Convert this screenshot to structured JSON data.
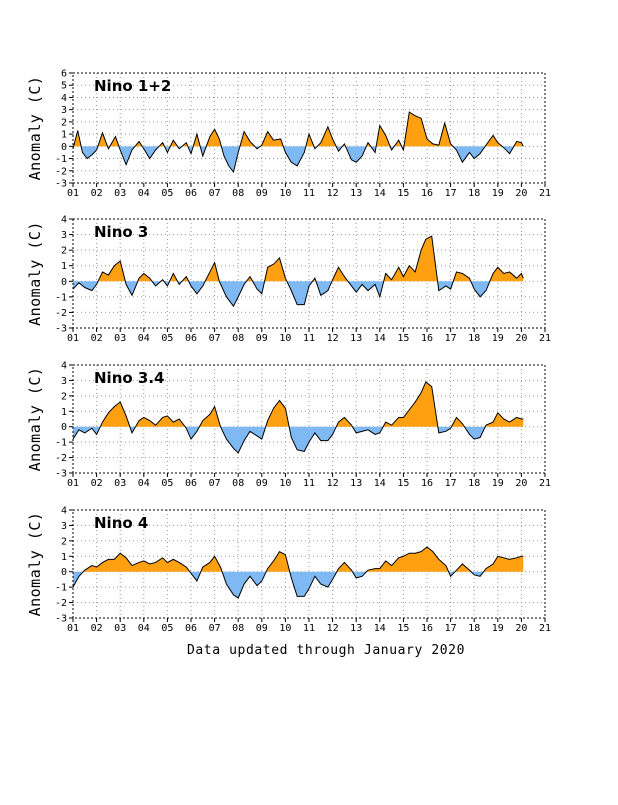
{
  "footer": "Data updated through January 2020",
  "colors": {
    "positive": "#FFA010",
    "negative": "#7FB9F4",
    "line": "#000000",
    "grid": "#999999"
  },
  "chart_data": [
    {
      "type": "area",
      "title": "Nino 1+2",
      "ylabel": "Anomaly (C)",
      "xlabel": "",
      "ylim": [
        -3,
        6
      ],
      "yticks": [
        -3,
        -2,
        -1,
        0,
        1,
        2,
        3,
        4,
        5,
        6
      ],
      "xlim": [
        2001,
        2021
      ],
      "xtick_labels": [
        "01",
        "02",
        "03",
        "04",
        "05",
        "06",
        "07",
        "08",
        "09",
        "10",
        "11",
        "12",
        "13",
        "14",
        "15",
        "16",
        "17",
        "18",
        "19",
        "20",
        "21"
      ],
      "grid": true,
      "series": [
        {
          "x": [
            2001.0,
            2001.2,
            2001.4,
            2001.6,
            2001.8,
            2002.0,
            2002.25,
            2002.5,
            2002.8,
            2003.0,
            2003.25,
            2003.5,
            2003.8,
            2004.0,
            2004.25,
            2004.5,
            2004.8,
            2005.0,
            2005.25,
            2005.5,
            2005.8,
            2006.0,
            2006.25,
            2006.5,
            2006.8,
            2007.0,
            2007.2,
            2007.4,
            2007.6,
            2007.8,
            2008.0,
            2008.25,
            2008.5,
            2008.8,
            2009.0,
            2009.25,
            2009.5,
            2009.8,
            2010.0,
            2010.25,
            2010.5,
            2010.8,
            2011.0,
            2011.25,
            2011.5,
            2011.8,
            2012.0,
            2012.25,
            2012.5,
            2012.8,
            2013.0,
            2013.25,
            2013.5,
            2013.8,
            2014.0,
            2014.25,
            2014.5,
            2014.8,
            2015.0,
            2015.25,
            2015.5,
            2015.75,
            2016.0,
            2016.25,
            2016.5,
            2016.75,
            2017.0,
            2017.25,
            2017.5,
            2017.8,
            2018.0,
            2018.25,
            2018.5,
            2018.8,
            2019.0,
            2019.25,
            2019.5,
            2019.8,
            2020.0,
            2020.08
          ],
          "y": [
            -0.2,
            1.3,
            -0.5,
            -1.0,
            -0.7,
            -0.3,
            1.1,
            -0.2,
            0.8,
            -0.3,
            -1.5,
            -0.3,
            0.4,
            -0.2,
            -1.0,
            -0.3,
            0.3,
            -0.5,
            0.5,
            -0.2,
            0.3,
            -0.6,
            1.0,
            -0.8,
            0.8,
            1.4,
            0.6,
            -0.8,
            -1.6,
            -2.1,
            -0.5,
            1.2,
            0.4,
            -0.2,
            0.1,
            1.2,
            0.5,
            0.6,
            -0.5,
            -1.3,
            -1.6,
            -0.5,
            1.0,
            -0.2,
            0.3,
            1.6,
            0.6,
            -0.4,
            0.2,
            -1.1,
            -1.3,
            -0.8,
            0.3,
            -0.5,
            1.7,
            0.9,
            -0.3,
            0.5,
            -0.3,
            2.8,
            2.5,
            2.3,
            0.6,
            0.2,
            0.1,
            1.9,
            0.2,
            -0.3,
            -1.3,
            -0.5,
            -1.0,
            -0.6,
            0.1,
            0.9,
            0.3,
            -0.1,
            -0.6,
            0.4,
            0.3,
            0.0
          ]
        }
      ]
    },
    {
      "type": "area",
      "title": "Nino 3",
      "ylabel": "Anomaly (C)",
      "xlabel": "",
      "ylim": [
        -3,
        4
      ],
      "yticks": [
        -3,
        -2,
        -1,
        0,
        1,
        2,
        3,
        4
      ],
      "xlim": [
        2001,
        2021
      ],
      "xtick_labels": [
        "01",
        "02",
        "03",
        "04",
        "05",
        "06",
        "07",
        "08",
        "09",
        "10",
        "11",
        "12",
        "13",
        "14",
        "15",
        "16",
        "17",
        "18",
        "19",
        "20",
        "21"
      ],
      "grid": true,
      "series": [
        {
          "x": [
            2001.0,
            2001.25,
            2001.5,
            2001.8,
            2002.0,
            2002.25,
            2002.5,
            2002.75,
            2003.0,
            2003.25,
            2003.5,
            2003.8,
            2004.0,
            2004.25,
            2004.5,
            2004.8,
            2005.0,
            2005.25,
            2005.5,
            2005.8,
            2006.0,
            2006.25,
            2006.5,
            2006.8,
            2007.0,
            2007.2,
            2007.5,
            2007.8,
            2008.0,
            2008.25,
            2008.5,
            2008.8,
            2009.0,
            2009.25,
            2009.5,
            2009.75,
            2010.0,
            2010.25,
            2010.5,
            2010.8,
            2011.0,
            2011.25,
            2011.5,
            2011.8,
            2012.0,
            2012.25,
            2012.5,
            2012.8,
            2013.0,
            2013.25,
            2013.5,
            2013.8,
            2014.0,
            2014.25,
            2014.5,
            2014.8,
            2015.0,
            2015.25,
            2015.5,
            2015.75,
            2015.95,
            2016.2,
            2016.5,
            2016.8,
            2017.0,
            2017.25,
            2017.5,
            2017.8,
            2018.0,
            2018.25,
            2018.5,
            2018.8,
            2019.0,
            2019.25,
            2019.5,
            2019.8,
            2020.0,
            2020.08
          ],
          "y": [
            -0.5,
            -0.1,
            -0.4,
            -0.6,
            -0.2,
            0.6,
            0.4,
            1.0,
            1.3,
            -0.2,
            -0.9,
            0.2,
            0.5,
            0.2,
            -0.3,
            0.1,
            -0.3,
            0.5,
            -0.2,
            0.3,
            -0.3,
            -0.8,
            -0.3,
            0.6,
            1.2,
            0.0,
            -1.0,
            -1.6,
            -1.0,
            -0.2,
            0.3,
            -0.5,
            -0.8,
            0.9,
            1.1,
            1.5,
            0.2,
            -0.6,
            -1.5,
            -1.5,
            -0.3,
            0.2,
            -0.9,
            -0.6,
            0.1,
            0.9,
            0.3,
            -0.3,
            -0.7,
            -0.2,
            -0.6,
            -0.2,
            -1.0,
            0.5,
            0.1,
            0.9,
            0.3,
            1.0,
            0.6,
            2.0,
            2.7,
            2.9,
            -0.6,
            -0.3,
            -0.5,
            0.6,
            0.5,
            0.2,
            -0.5,
            -1.0,
            -0.6,
            0.5,
            0.9,
            0.5,
            0.6,
            0.2,
            0.5,
            0.2
          ]
        }
      ]
    },
    {
      "type": "area",
      "title": "Nino 3.4",
      "ylabel": "Anomaly (C)",
      "xlabel": "",
      "ylim": [
        -3,
        4
      ],
      "yticks": [
        -3,
        -2,
        -1,
        0,
        1,
        2,
        3,
        4
      ],
      "xlim": [
        2001,
        2021
      ],
      "xtick_labels": [
        "01",
        "02",
        "03",
        "04",
        "05",
        "06",
        "07",
        "08",
        "09",
        "10",
        "11",
        "12",
        "13",
        "14",
        "15",
        "16",
        "17",
        "18",
        "19",
        "20",
        "21"
      ],
      "grid": true,
      "series": [
        {
          "x": [
            2001.0,
            2001.25,
            2001.5,
            2001.8,
            2002.0,
            2002.25,
            2002.5,
            2002.75,
            2003.0,
            2003.25,
            2003.5,
            2003.8,
            2004.0,
            2004.25,
            2004.5,
            2004.8,
            2005.0,
            2005.25,
            2005.5,
            2005.8,
            2006.0,
            2006.25,
            2006.5,
            2006.8,
            2007.0,
            2007.25,
            2007.5,
            2007.8,
            2008.0,
            2008.25,
            2008.5,
            2008.8,
            2009.0,
            2009.25,
            2009.5,
            2009.75,
            2010.0,
            2010.25,
            2010.5,
            2010.8,
            2011.0,
            2011.25,
            2011.5,
            2011.8,
            2012.0,
            2012.25,
            2012.5,
            2012.8,
            2013.0,
            2013.25,
            2013.5,
            2013.8,
            2014.0,
            2014.25,
            2014.5,
            2014.8,
            2015.0,
            2015.25,
            2015.5,
            2015.75,
            2015.95,
            2016.2,
            2016.5,
            2016.8,
            2017.0,
            2017.25,
            2017.5,
            2017.8,
            2018.0,
            2018.25,
            2018.5,
            2018.8,
            2019.0,
            2019.25,
            2019.5,
            2019.8,
            2020.0,
            2020.08
          ],
          "y": [
            -0.8,
            -0.2,
            -0.4,
            -0.1,
            -0.5,
            0.3,
            0.9,
            1.3,
            1.6,
            0.7,
            -0.4,
            0.4,
            0.6,
            0.4,
            0.1,
            0.6,
            0.7,
            0.3,
            0.5,
            -0.1,
            -0.8,
            -0.3,
            0.4,
            0.8,
            1.3,
            0.0,
            -0.8,
            -1.4,
            -1.7,
            -0.9,
            -0.3,
            -0.6,
            -0.8,
            0.4,
            1.2,
            1.7,
            1.2,
            -0.7,
            -1.5,
            -1.6,
            -1.0,
            -0.4,
            -0.9,
            -0.9,
            -0.5,
            0.3,
            0.6,
            0.1,
            -0.4,
            -0.3,
            -0.2,
            -0.5,
            -0.4,
            0.3,
            0.1,
            0.6,
            0.6,
            1.1,
            1.6,
            2.2,
            2.9,
            2.6,
            -0.4,
            -0.3,
            -0.1,
            0.6,
            0.2,
            -0.5,
            -0.8,
            -0.7,
            0.1,
            0.3,
            0.9,
            0.5,
            0.3,
            0.6,
            0.5,
            0.5
          ]
        }
      ]
    },
    {
      "type": "area",
      "title": "Nino 4",
      "ylabel": "Anomaly (C)",
      "xlabel": "",
      "ylim": [
        -3,
        4
      ],
      "yticks": [
        -3,
        -2,
        -1,
        0,
        1,
        2,
        3,
        4
      ],
      "xlim": [
        2001,
        2021
      ],
      "xtick_labels": [
        "01",
        "02",
        "03",
        "04",
        "05",
        "06",
        "07",
        "08",
        "09",
        "10",
        "11",
        "12",
        "13",
        "14",
        "15",
        "16",
        "17",
        "18",
        "19",
        "20",
        "21"
      ],
      "grid": true,
      "series": [
        {
          "x": [
            2001.0,
            2001.25,
            2001.5,
            2001.8,
            2002.0,
            2002.25,
            2002.5,
            2002.75,
            2003.0,
            2003.25,
            2003.5,
            2003.8,
            2004.0,
            2004.25,
            2004.5,
            2004.8,
            2005.0,
            2005.25,
            2005.5,
            2005.8,
            2006.0,
            2006.25,
            2006.5,
            2006.8,
            2007.0,
            2007.25,
            2007.5,
            2007.8,
            2008.0,
            2008.25,
            2008.5,
            2008.8,
            2009.0,
            2009.25,
            2009.5,
            2009.75,
            2010.0,
            2010.25,
            2010.5,
            2010.8,
            2011.0,
            2011.25,
            2011.5,
            2011.8,
            2012.0,
            2012.25,
            2012.5,
            2012.8,
            2013.0,
            2013.25,
            2013.5,
            2013.8,
            2014.0,
            2014.25,
            2014.5,
            2014.8,
            2015.0,
            2015.25,
            2015.5,
            2015.75,
            2016.0,
            2016.25,
            2016.5,
            2016.8,
            2017.0,
            2017.25,
            2017.5,
            2017.8,
            2018.0,
            2018.25,
            2018.5,
            2018.8,
            2019.0,
            2019.25,
            2019.5,
            2019.8,
            2020.0,
            2020.08
          ],
          "y": [
            -1.0,
            -0.3,
            0.1,
            0.4,
            0.3,
            0.6,
            0.8,
            0.8,
            1.2,
            0.9,
            0.4,
            0.6,
            0.7,
            0.5,
            0.6,
            0.9,
            0.6,
            0.8,
            0.6,
            0.3,
            -0.1,
            -0.6,
            0.3,
            0.6,
            1.0,
            0.3,
            -0.8,
            -1.5,
            -1.7,
            -0.8,
            -0.3,
            -0.9,
            -0.6,
            0.2,
            0.7,
            1.3,
            1.1,
            -0.4,
            -1.6,
            -1.6,
            -1.1,
            -0.3,
            -0.8,
            -1.0,
            -0.5,
            0.2,
            0.6,
            0.1,
            -0.4,
            -0.3,
            0.1,
            0.2,
            0.2,
            0.7,
            0.4,
            0.9,
            1.0,
            1.2,
            1.2,
            1.3,
            1.6,
            1.3,
            0.8,
            0.4,
            -0.3,
            0.1,
            0.5,
            0.1,
            -0.2,
            -0.3,
            0.2,
            0.5,
            1.0,
            0.9,
            0.8,
            0.9,
            1.0,
            1.0
          ]
        }
      ]
    }
  ]
}
